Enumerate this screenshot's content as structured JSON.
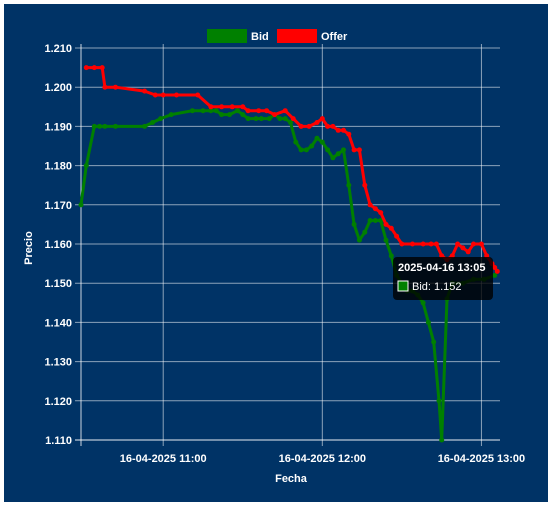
{
  "chart_data": {
    "type": "line",
    "xlabel": "Fecha",
    "ylabel": "Precio",
    "x_tick_labels": [
      "16-04-2025 11:00",
      "16-04-2025 12:00",
      "16-04-2025 13:00"
    ],
    "y_tick_labels": [
      "1.210",
      "1.200",
      "1.190",
      "1.180",
      "1.170",
      "1.160",
      "1.150",
      "1.140",
      "1.130",
      "1.120",
      "1.110"
    ],
    "ylim": [
      1.11,
      1.21
    ],
    "y_step": 0.01,
    "xlim": [
      "10:29",
      "13:07"
    ],
    "x_unit": "time of day, 16-04-2025 (HH:MM)",
    "grid": true,
    "legend_position": "top",
    "series": [
      {
        "name": "Bid",
        "color": "#008000",
        "points": [
          [
            "10:29",
            1.17
          ],
          [
            "10:31",
            1.18
          ],
          [
            "10:34",
            1.19
          ],
          [
            "10:36",
            1.19
          ],
          [
            "10:38",
            1.19
          ],
          [
            "10:42",
            1.19
          ],
          [
            "10:53",
            1.19
          ],
          [
            "10:56",
            1.191
          ],
          [
            "10:59",
            1.192
          ],
          [
            "11:03",
            1.193
          ],
          [
            "11:11",
            1.194
          ],
          [
            "11:15",
            1.194
          ],
          [
            "11:18",
            1.194
          ],
          [
            "11:20",
            1.194
          ],
          [
            "11:22",
            1.193
          ],
          [
            "11:25",
            1.193
          ],
          [
            "11:28",
            1.194
          ],
          [
            "11:30",
            1.193
          ],
          [
            "11:32",
            1.192
          ],
          [
            "11:35",
            1.192
          ],
          [
            "11:37",
            1.192
          ],
          [
            "11:40",
            1.192
          ],
          [
            "11:42",
            1.193
          ],
          [
            "11:44",
            1.192
          ],
          [
            "11:46",
            1.192
          ],
          [
            "11:48",
            1.191
          ],
          [
            "11:50",
            1.186
          ],
          [
            "11:52",
            1.184
          ],
          [
            "11:54",
            1.184
          ],
          [
            "11:56",
            1.185
          ],
          [
            "11:58",
            1.187
          ],
          [
            "12:00",
            1.186
          ],
          [
            "12:02",
            1.184
          ],
          [
            "12:04",
            1.182
          ],
          [
            "12:06",
            1.183
          ],
          [
            "12:08",
            1.184
          ],
          [
            "12:10",
            1.175
          ],
          [
            "12:12",
            1.165
          ],
          [
            "12:14",
            1.161
          ],
          [
            "12:16",
            1.163
          ],
          [
            "12:18",
            1.166
          ],
          [
            "12:20",
            1.166
          ],
          [
            "12:22",
            1.166
          ],
          [
            "12:24",
            1.161
          ],
          [
            "12:26",
            1.157
          ],
          [
            "12:28",
            1.152
          ],
          [
            "12:30",
            1.15
          ],
          [
            "12:32",
            1.148
          ],
          [
            "12:34",
            1.148
          ],
          [
            "12:36",
            1.147
          ],
          [
            "12:38",
            1.145
          ],
          [
            "12:40",
            1.14
          ],
          [
            "12:42",
            1.135
          ],
          [
            "12:44",
            1.12
          ],
          [
            "12:45",
            1.11
          ],
          [
            "12:47",
            1.146
          ],
          [
            "12:49",
            1.15
          ],
          [
            "12:53",
            1.15
          ],
          [
            "12:57",
            1.151
          ],
          [
            "13:01",
            1.151
          ],
          [
            "13:05",
            1.152
          ]
        ]
      },
      {
        "name": "Offer",
        "color": "#ff0000",
        "points": [
          [
            "10:31",
            1.205
          ],
          [
            "10:34",
            1.205
          ],
          [
            "10:37",
            1.205
          ],
          [
            "10:38",
            1.2
          ],
          [
            "10:42",
            1.2
          ],
          [
            "10:53",
            1.199
          ],
          [
            "10:57",
            1.198
          ],
          [
            "11:00",
            1.198
          ],
          [
            "11:05",
            1.198
          ],
          [
            "11:13",
            1.198
          ],
          [
            "11:18",
            1.195
          ],
          [
            "11:22",
            1.195
          ],
          [
            "11:26",
            1.195
          ],
          [
            "11:30",
            1.195
          ],
          [
            "11:32",
            1.194
          ],
          [
            "11:36",
            1.194
          ],
          [
            "11:39",
            1.194
          ],
          [
            "11:42",
            1.193
          ],
          [
            "11:46",
            1.194
          ],
          [
            "11:49",
            1.192
          ],
          [
            "11:52",
            1.19
          ],
          [
            "11:55",
            1.19
          ],
          [
            "11:58",
            1.191
          ],
          [
            "12:00",
            1.192
          ],
          [
            "12:02",
            1.19
          ],
          [
            "12:04",
            1.19
          ],
          [
            "12:06",
            1.189
          ],
          [
            "12:08",
            1.189
          ],
          [
            "12:10",
            1.188
          ],
          [
            "12:12",
            1.184
          ],
          [
            "12:14",
            1.184
          ],
          [
            "12:16",
            1.175
          ],
          [
            "12:18",
            1.17
          ],
          [
            "12:20",
            1.169
          ],
          [
            "12:22",
            1.168
          ],
          [
            "12:24",
            1.165
          ],
          [
            "12:26",
            1.164
          ],
          [
            "12:28",
            1.162
          ],
          [
            "12:30",
            1.16
          ],
          [
            "12:34",
            1.16
          ],
          [
            "12:38",
            1.16
          ],
          [
            "12:41",
            1.16
          ],
          [
            "12:43",
            1.16
          ],
          [
            "12:45",
            1.157
          ],
          [
            "12:47",
            1.156
          ],
          [
            "12:49",
            1.157
          ],
          [
            "12:51",
            1.16
          ],
          [
            "12:53",
            1.159
          ],
          [
            "12:55",
            1.158
          ],
          [
            "12:57",
            1.16
          ],
          [
            "13:00",
            1.16
          ],
          [
            "13:02",
            1.157
          ],
          [
            "13:04",
            1.155
          ],
          [
            "13:05",
            1.154
          ],
          [
            "13:06",
            1.153
          ]
        ]
      }
    ],
    "tooltip": {
      "title": "2025-04-16 13:05",
      "label": "Bid: 1.152"
    }
  }
}
